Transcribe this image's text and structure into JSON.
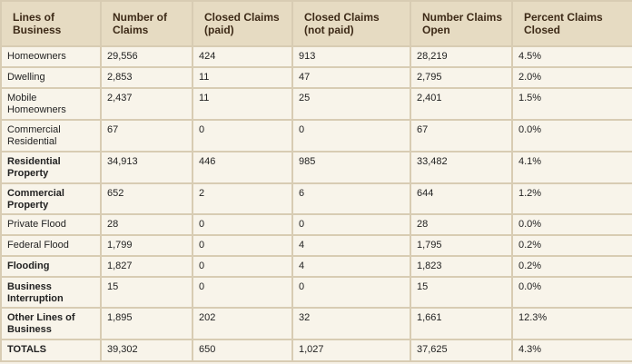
{
  "table": {
    "header": [
      "Lines of Business",
      "Number of Claims",
      "Closed Claims (paid)",
      "Closed Claims (not paid)",
      "Number Claims Open",
      "Percent Claims Closed"
    ],
    "rows": [
      [
        "Homeowners",
        "29,556",
        "424",
        "913",
        "28,219",
        "4.5%"
      ],
      [
        "Dwelling",
        "2,853",
        "11",
        "47",
        "2,795",
        "2.0%"
      ],
      [
        "Mobile Homeowners",
        "2,437",
        "11",
        "25",
        "2,401",
        "1.5%"
      ],
      [
        "Commercial Residential",
        "67",
        "0",
        "0",
        "67",
        "0.0%"
      ],
      [
        "Residential Property",
        "34,913",
        "446",
        "985",
        "33,482",
        "4.1%"
      ],
      [
        "Commercial Property",
        "652",
        "2",
        "6",
        "644",
        "1.2%"
      ],
      [
        "Private Flood",
        "28",
        "0",
        "0",
        "28",
        "0.0%"
      ],
      [
        "Federal Flood",
        "1,799",
        "0",
        "4",
        "1,795",
        "0.2%"
      ],
      [
        "Flooding",
        "1,827",
        "0",
        "4",
        "1,823",
        "0.2%"
      ],
      [
        "Business Interruption",
        "15",
        "0",
        "0",
        "15",
        "0.0%"
      ],
      [
        "Other Lines of Business",
        "1,895",
        "202",
        "32",
        "1,661",
        "12.3%"
      ],
      [
        "TOTALS",
        "39,302",
        "650",
        "1,027",
        "37,625",
        "4.3%"
      ]
    ]
  }
}
